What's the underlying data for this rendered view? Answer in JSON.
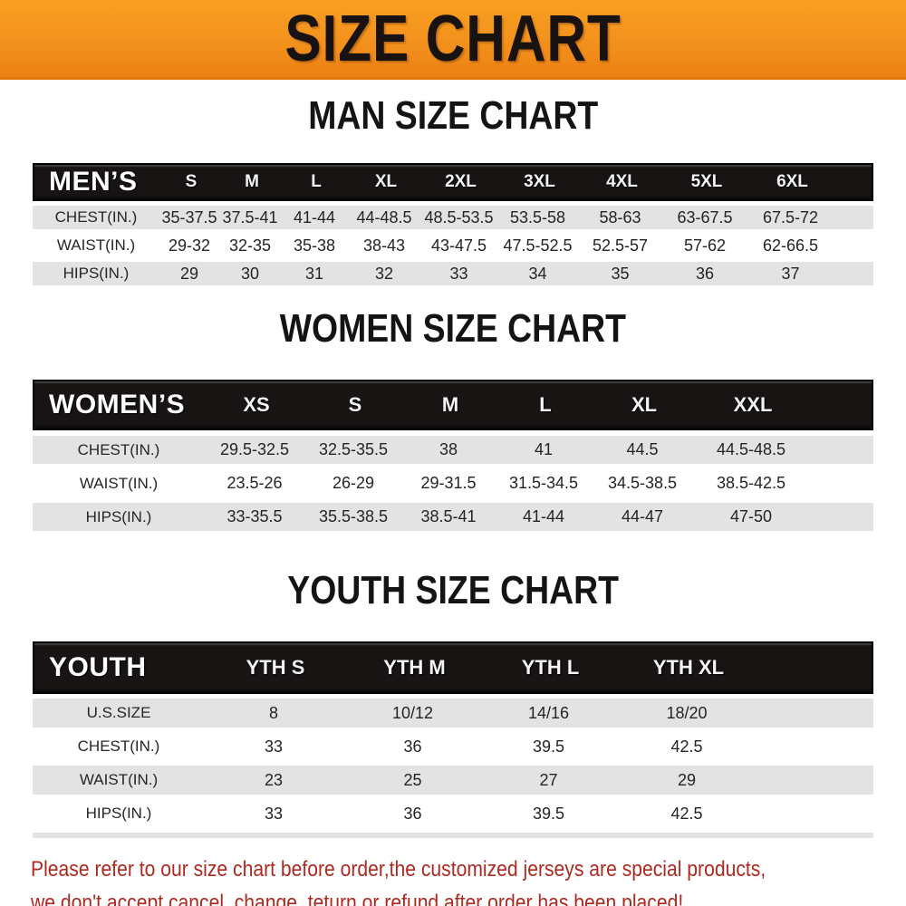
{
  "banner": {
    "title": "SIZE CHART"
  },
  "colors": {
    "banner_orange": "#F3911D",
    "header_bar_black": "#181414",
    "row_gray": "#E3E3E3",
    "row_white": "#FFFFFF",
    "footer_red": "#AE2A21"
  },
  "sections": [
    {
      "heading": "MAN SIZE CHART",
      "table": {
        "corner_label": "MEN’S",
        "columns": [
          "S",
          "M",
          "L",
          "XL",
          "2XL",
          "3XL",
          "4XL",
          "5XL",
          "6XL"
        ],
        "rows": [
          {
            "label": "CHEST(IN.)",
            "values": [
              "35-37.5",
              "37.5-41",
              "41-44",
              "44-48.5",
              "48.5-53.5",
              "53.5-58",
              "58-63",
              "63-67.5",
              "67.5-72"
            ]
          },
          {
            "label": "WAIST(IN.)",
            "values": [
              "29-32",
              "32-35",
              "35-38",
              "38-43",
              "43-47.5",
              "47.5-52.5",
              "52.5-57",
              "57-62",
              "62-66.5"
            ]
          },
          {
            "label": "HIPS(IN.)",
            "values": [
              "29",
              "30",
              "31",
              "32",
              "33",
              "34",
              "35",
              "36",
              "37"
            ]
          }
        ]
      }
    },
    {
      "heading": "WOMEN SIZE CHART",
      "table": {
        "corner_label": "WOMEN’S",
        "columns": [
          "XS",
          "S",
          "M",
          "L",
          "XL",
          "XXL"
        ],
        "rows": [
          {
            "label": "CHEST(IN.)",
            "values": [
              "29.5-32.5",
              "32.5-35.5",
              "38",
              "41",
              "44.5",
              "44.5-48.5"
            ]
          },
          {
            "label": "WAIST(IN.)",
            "values": [
              "23.5-26",
              "26-29",
              "29-31.5",
              "31.5-34.5",
              "34.5-38.5",
              "38.5-42.5"
            ]
          },
          {
            "label": "HIPS(IN.)",
            "values": [
              "33-35.5",
              "35.5-38.5",
              "38.5-41",
              "41-44",
              "44-47",
              "47-50"
            ]
          }
        ]
      }
    },
    {
      "heading": "YOUTH SIZE CHART",
      "table": {
        "corner_label": "YOUTH",
        "columns": [
          "YTH S",
          "YTH M",
          "YTH L",
          "YTH XL"
        ],
        "rows": [
          {
            "label": "U.S.SIZE",
            "values": [
              "8",
              "10/12",
              "14/16",
              "18/20"
            ]
          },
          {
            "label": "CHEST(IN.)",
            "values": [
              "33",
              "36",
              "39.5",
              "42.5"
            ]
          },
          {
            "label": "WAIST(IN.)",
            "values": [
              "23",
              "25",
              "27",
              "29"
            ]
          },
          {
            "label": "HIPS(IN.)",
            "values": [
              "33",
              "36",
              "39.5",
              "42.5"
            ]
          }
        ]
      }
    }
  ],
  "footer": {
    "lines": [
      "Please refer to our size chart before order,the customized jerseys are special products,",
      "we don't accept cancel, change, teturn or refund after order has been placed!"
    ]
  },
  "chart_data": [
    {
      "type": "table",
      "title": "MAN SIZE CHART",
      "columns": [
        "MEN'S",
        "S",
        "M",
        "L",
        "XL",
        "2XL",
        "3XL",
        "4XL",
        "5XL",
        "6XL"
      ],
      "rows": [
        [
          "CHEST(IN.)",
          "35-37.5",
          "37.5-41",
          "41-44",
          "44-48.5",
          "48.5-53.5",
          "53.5-58",
          "58-63",
          "63-67.5",
          "67.5-72"
        ],
        [
          "WAIST(IN.)",
          "29-32",
          "32-35",
          "35-38",
          "38-43",
          "43-47.5",
          "47.5-52.5",
          "52.5-57",
          "57-62",
          "62-66.5"
        ],
        [
          "HIPS(IN.)",
          "29",
          "30",
          "31",
          "32",
          "33",
          "34",
          "35",
          "36",
          "37"
        ]
      ]
    },
    {
      "type": "table",
      "title": "WOMEN SIZE CHART",
      "columns": [
        "WOMEN'S",
        "XS",
        "S",
        "M",
        "L",
        "XL",
        "XXL"
      ],
      "rows": [
        [
          "CHEST(IN.)",
          "29.5-32.5",
          "32.5-35.5",
          "38",
          "41",
          "44.5",
          "44.5-48.5"
        ],
        [
          "WAIST(IN.)",
          "23.5-26",
          "26-29",
          "29-31.5",
          "31.5-34.5",
          "34.5-38.5",
          "38.5-42.5"
        ],
        [
          "HIPS(IN.)",
          "33-35.5",
          "35.5-38.5",
          "38.5-41",
          "41-44",
          "44-47",
          "47-50"
        ]
      ]
    },
    {
      "type": "table",
      "title": "YOUTH SIZE CHART",
      "columns": [
        "YOUTH",
        "YTH S",
        "YTH M",
        "YTH L",
        "YTH XL"
      ],
      "rows": [
        [
          "U.S.SIZE",
          "8",
          "10/12",
          "14/16",
          "18/20"
        ],
        [
          "CHEST(IN.)",
          "33",
          "36",
          "39.5",
          "42.5"
        ],
        [
          "WAIST(IN.)",
          "23",
          "25",
          "27",
          "29"
        ],
        [
          "HIPS(IN.)",
          "33",
          "36",
          "39.5",
          "42.5"
        ]
      ]
    }
  ]
}
